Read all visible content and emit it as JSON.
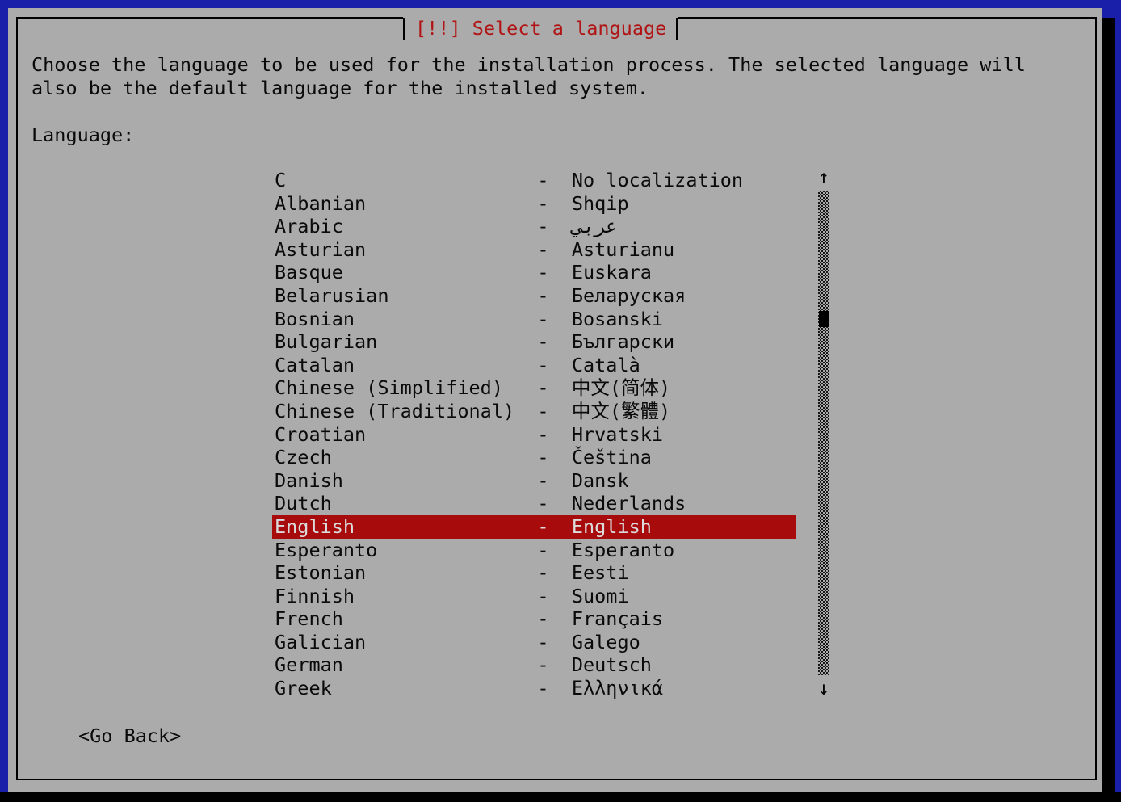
{
  "dialog": {
    "title": "[!!] Select a language",
    "instructions_line1": "Choose the language to be used for the installation process. The selected language will",
    "instructions_line2": "also be the default language for the installed system.",
    "field_label": "Language:",
    "go_back_label": "<Go Back>"
  },
  "language_list": {
    "selected_index": 15,
    "separator": "-",
    "scrollbar": {
      "up_arrow": "↑",
      "down_arrow": "↓"
    },
    "items": [
      {
        "name": "C",
        "native": "No localization"
      },
      {
        "name": "Albanian",
        "native": "Shqip"
      },
      {
        "name": "Arabic",
        "native": "عربي"
      },
      {
        "name": "Asturian",
        "native": "Asturianu"
      },
      {
        "name": "Basque",
        "native": "Euskara"
      },
      {
        "name": "Belarusian",
        "native": "Беларуская"
      },
      {
        "name": "Bosnian",
        "native": "Bosanski"
      },
      {
        "name": "Bulgarian",
        "native": "Български"
      },
      {
        "name": "Catalan",
        "native": "Català"
      },
      {
        "name": "Chinese (Simplified)",
        "native": "中文(简体)"
      },
      {
        "name": "Chinese (Traditional)",
        "native": "中文(繁體)"
      },
      {
        "name": "Croatian",
        "native": "Hrvatski"
      },
      {
        "name": "Czech",
        "native": "Čeština"
      },
      {
        "name": "Danish",
        "native": "Dansk"
      },
      {
        "name": "Dutch",
        "native": "Nederlands"
      },
      {
        "name": "English",
        "native": "English"
      },
      {
        "name": "Esperanto",
        "native": "Esperanto"
      },
      {
        "name": "Estonian",
        "native": "Eesti"
      },
      {
        "name": "Finnish",
        "native": "Suomi"
      },
      {
        "name": "French",
        "native": "Français"
      },
      {
        "name": "Galician",
        "native": "Galego"
      },
      {
        "name": "German",
        "native": "Deutsch"
      },
      {
        "name": "Greek",
        "native": "Ελληνικά"
      }
    ]
  },
  "colors": {
    "background_blue": "#1a1faa",
    "dialog_gray": "#ababab",
    "title_red": "#b01414",
    "highlight_red": "#a80b0b",
    "highlight_text": "#dcdcdc",
    "text_black": "#0a0a0a"
  }
}
